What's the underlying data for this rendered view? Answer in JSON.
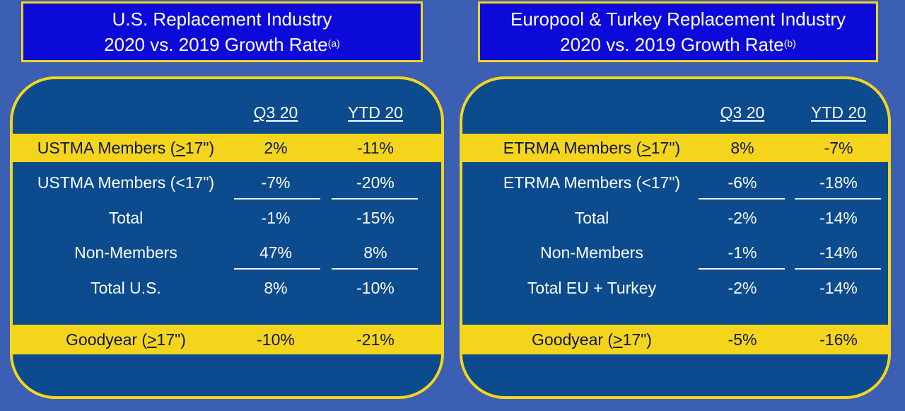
{
  "left": {
    "title_line1": "U.S. Replacement Industry",
    "title_line2": "2020 vs. 2019 Growth Rate",
    "title_sup": "(a)",
    "col1": "Q3 20",
    "col2": "YTD 20",
    "rows": [
      {
        "label_pre": "USTMA Members (",
        "label_ul": ">",
        "label_post": "17\")",
        "q3": "2%",
        "ytd": "-11%"
      },
      {
        "label": "USTMA Members (<17\")",
        "q3": "-7%",
        "ytd": "-20%"
      },
      {
        "label": "Total",
        "q3": "-1%",
        "ytd": "-15%"
      },
      {
        "label": "Non-Members",
        "q3": "47%",
        "ytd": "8%"
      },
      {
        "label": "Total U.S.",
        "q3": "8%",
        "ytd": "-10%"
      },
      {
        "label_pre": "Goodyear (",
        "label_ul": ">",
        "label_post": "17\")",
        "q3": "-10%",
        "ytd": "-21%"
      }
    ]
  },
  "right": {
    "title_line1": "Europool & Turkey Replacement Industry",
    "title_line2": "2020 vs. 2019 Growth Rate",
    "title_sup": "(b)",
    "col1": "Q3 20",
    "col2": "YTD 20",
    "rows": [
      {
        "label_pre": "ETRMA Members (",
        "label_ul": ">",
        "label_post": "17\")",
        "q3": "8%",
        "ytd": "-7%"
      },
      {
        "label": "ETRMA Members (<17\")",
        "q3": "-6%",
        "ytd": "-18%"
      },
      {
        "label": "Total",
        "q3": "-2%",
        "ytd": "-14%"
      },
      {
        "label": "Non-Members",
        "q3": "-1%",
        "ytd": "-14%"
      },
      {
        "label": "Total EU + Turkey",
        "q3": "-2%",
        "ytd": "-14%"
      },
      {
        "label_pre": "Goodyear (",
        "label_ul": ">",
        "label_post": "17\")",
        "q3": "-5%",
        "ytd": "-16%"
      }
    ]
  },
  "colors": {
    "background": "#3a5fb3",
    "title_box": "#0c0ad8",
    "panel": "#0b4b8e",
    "highlight": "#f5d51c",
    "text_on_blue": "#ffffff",
    "text_on_yellow": "#0c1640"
  }
}
